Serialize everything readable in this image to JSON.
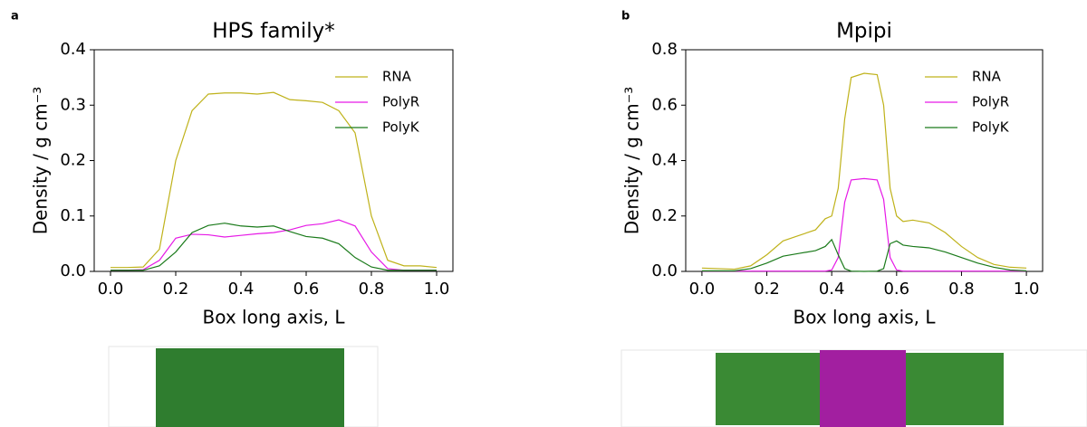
{
  "panel_labels": [
    "a",
    "b"
  ],
  "chart_data": [
    {
      "type": "line",
      "title": "HPS family*",
      "xlabel": "Box long axis, L",
      "ylabel": "Density / g cm⁻³",
      "x": [
        0,
        0.05,
        0.1,
        0.15,
        0.2,
        0.25,
        0.3,
        0.35,
        0.4,
        0.45,
        0.5,
        0.55,
        0.6,
        0.65,
        0.7,
        0.75,
        0.8,
        0.85,
        0.9,
        0.95,
        1.0
      ],
      "series": [
        {
          "name": "RNA",
          "color": "#bfb21a",
          "values": [
            0.007,
            0.007,
            0.008,
            0.04,
            0.2,
            0.29,
            0.32,
            0.322,
            0.322,
            0.32,
            0.323,
            0.31,
            0.308,
            0.305,
            0.29,
            0.25,
            0.1,
            0.02,
            0.01,
            0.01,
            0.007
          ]
        },
        {
          "name": "PolyR",
          "color": "#e619e6",
          "values": [
            0.002,
            0.002,
            0.003,
            0.02,
            0.06,
            0.067,
            0.066,
            0.062,
            0.065,
            0.068,
            0.07,
            0.075,
            0.083,
            0.086,
            0.093,
            0.082,
            0.035,
            0.005,
            0.002,
            0.002,
            0.002
          ]
        },
        {
          "name": "PolyK",
          "color": "#1a7a1a",
          "values": [
            0.002,
            0.002,
            0.002,
            0.01,
            0.035,
            0.07,
            0.083,
            0.087,
            0.082,
            0.08,
            0.082,
            0.072,
            0.063,
            0.06,
            0.05,
            0.025,
            0.008,
            0.002,
            0.002,
            0.002,
            0.002
          ]
        }
      ],
      "xlim": [
        -0.05,
        1.05
      ],
      "ylim": [
        0,
        0.4
      ],
      "xticks": [
        {
          "value": 0,
          "label": "0.0"
        },
        0.2,
        0.4,
        0.6,
        0.8,
        {
          "value": 1,
          "label": "1.0"
        }
      ],
      "yticks": [
        {
          "value": 0,
          "label": "0.0"
        },
        0.1,
        0.2,
        0.3,
        0.4
      ],
      "legend": "upper right"
    },
    {
      "type": "line",
      "title": "Mpipi",
      "xlabel": "Box long axis, L",
      "ylabel": "Density / g cm⁻³",
      "x": [
        0,
        0.05,
        0.1,
        0.15,
        0.2,
        0.25,
        0.3,
        0.35,
        0.38,
        0.4,
        0.42,
        0.44,
        0.46,
        0.5,
        0.54,
        0.56,
        0.58,
        0.6,
        0.62,
        0.65,
        0.7,
        0.75,
        0.8,
        0.85,
        0.9,
        0.95,
        1.0
      ],
      "series": [
        {
          "name": "RNA",
          "color": "#bfb21a",
          "values": [
            0.012,
            0.01,
            0.008,
            0.02,
            0.06,
            0.11,
            0.13,
            0.15,
            0.19,
            0.2,
            0.3,
            0.55,
            0.7,
            0.715,
            0.71,
            0.6,
            0.3,
            0.2,
            0.18,
            0.185,
            0.175,
            0.14,
            0.09,
            0.05,
            0.025,
            0.015,
            0.012
          ]
        },
        {
          "name": "PolyR",
          "color": "#e619e6",
          "values": [
            0.001,
            0.001,
            0.001,
            0.001,
            0.001,
            0.001,
            0.001,
            0.001,
            0.001,
            0.005,
            0.05,
            0.25,
            0.33,
            0.335,
            0.33,
            0.26,
            0.05,
            0.005,
            0.001,
            0.001,
            0.001,
            0.001,
            0.001,
            0.001,
            0.001,
            0.001,
            0.001
          ]
        },
        {
          "name": "PolyK",
          "color": "#1a7a1a",
          "values": [
            0.002,
            0.002,
            0.002,
            0.01,
            0.03,
            0.055,
            0.065,
            0.075,
            0.09,
            0.115,
            0.06,
            0.01,
            0.001,
            0.0,
            0.001,
            0.01,
            0.1,
            0.11,
            0.095,
            0.09,
            0.085,
            0.07,
            0.05,
            0.03,
            0.015,
            0.005,
            0.002
          ]
        }
      ],
      "xlim": [
        -0.05,
        1.05
      ],
      "ylim": [
        0,
        0.8
      ],
      "xticks": [
        {
          "value": 0,
          "label": "0.0"
        },
        0.2,
        0.4,
        0.6,
        0.8,
        {
          "value": 1,
          "label": "1.0"
        }
      ],
      "yticks": [
        {
          "value": 0,
          "label": "0.0"
        },
        0.2,
        0.4,
        0.6,
        0.8
      ],
      "legend": "upper right"
    }
  ]
}
